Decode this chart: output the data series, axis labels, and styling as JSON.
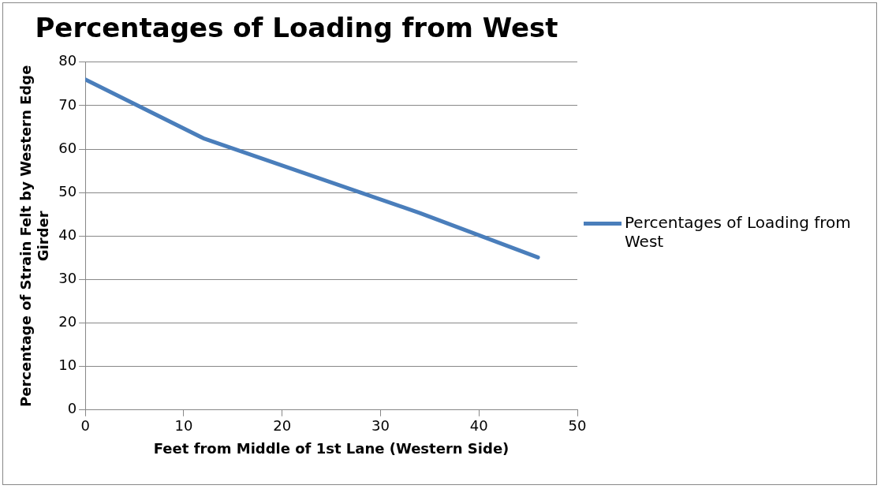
{
  "chart_data": {
    "type": "line",
    "title": "Percentages of Loading from West",
    "xlabel": "Feet from Middle of 1st Lane (Western Side)",
    "ylabel": "Percentage of Strain Felt by Western Edge Girder",
    "series": [
      {
        "name": "Percentages of Loading from West",
        "color": "#4a7ebb",
        "x": [
          0,
          12,
          34,
          46
        ],
        "values": [
          76,
          62.5,
          45.3,
          35.1
        ]
      }
    ],
    "xlim": [
      0,
      50
    ],
    "xticks": [
      0,
      10,
      20,
      30,
      40,
      50
    ],
    "ylim": [
      0,
      80
    ],
    "yticks": [
      0,
      10,
      20,
      30,
      40,
      50,
      60,
      70,
      80
    ],
    "grid": "y",
    "legend": "right",
    "marker": "none",
    "line_style": "solid"
  }
}
